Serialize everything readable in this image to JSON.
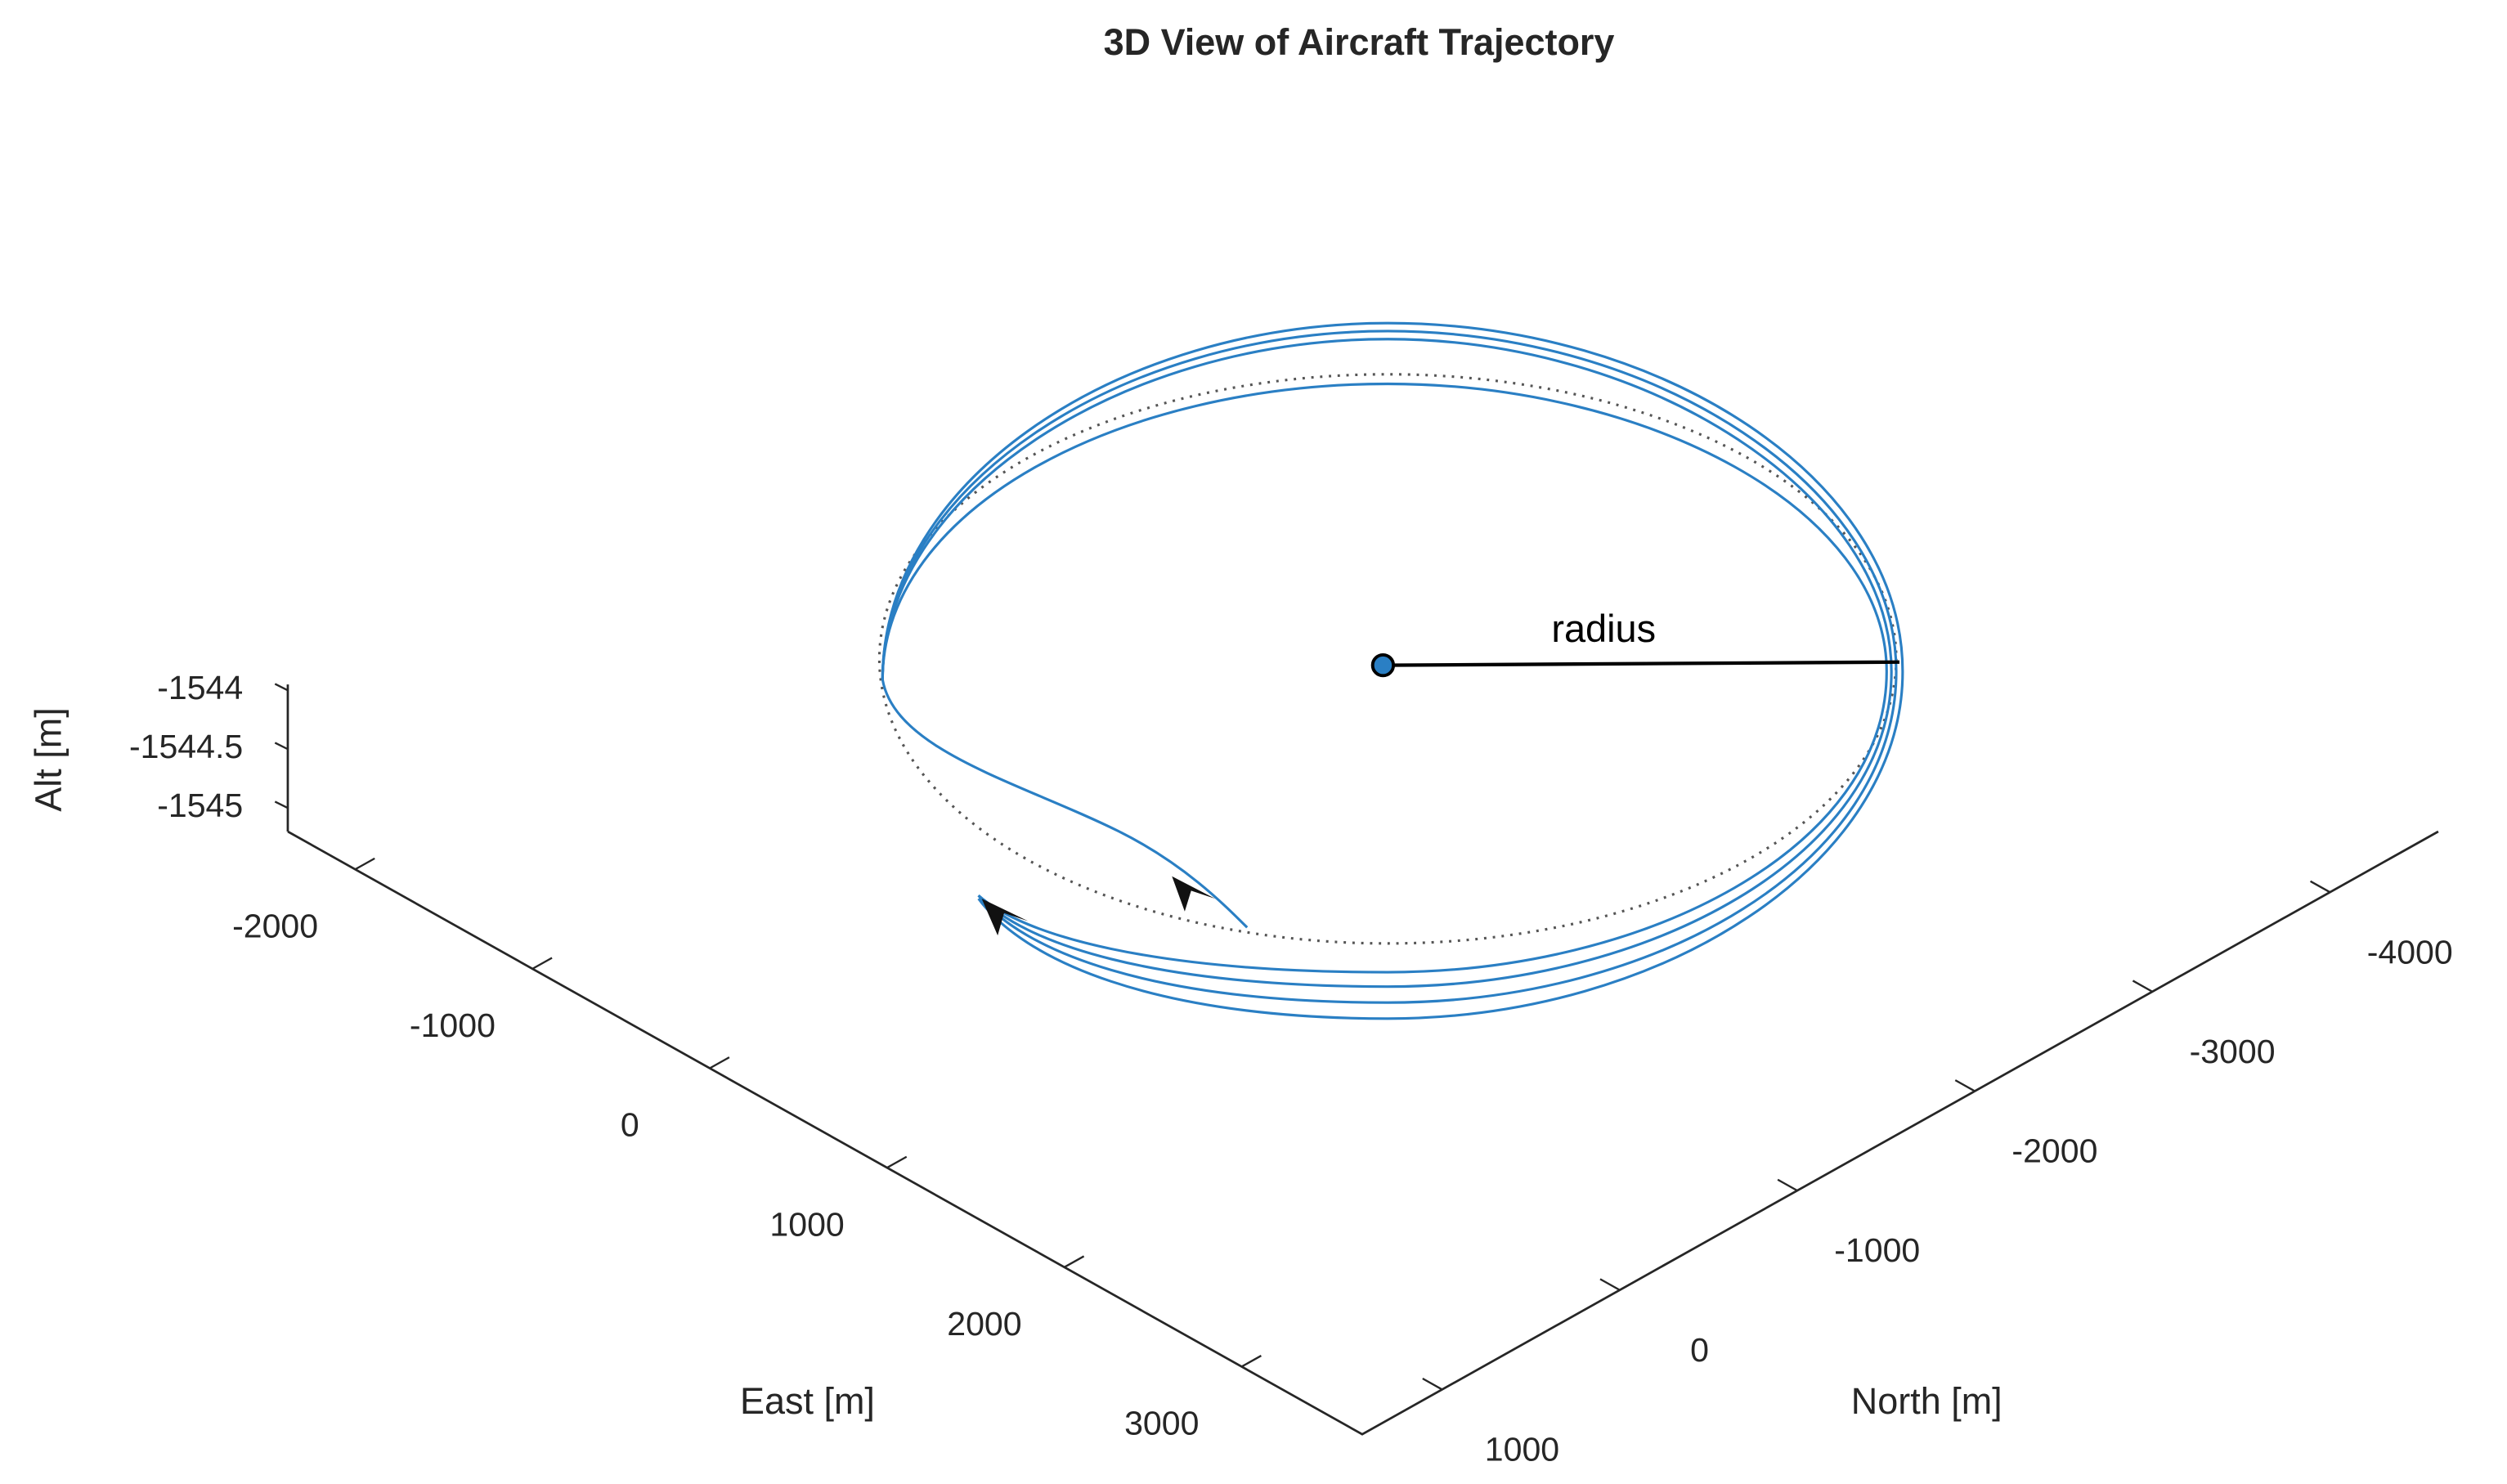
{
  "chart_data": {
    "type": "line3d",
    "title": "3D View of Aircraft Trajectory",
    "xlabel": "East [m]",
    "ylabel": "North [m]",
    "zlabel": "Alt [m]",
    "annotation": "radius",
    "xlim": [
      -2380,
      3680
    ],
    "xticks": [
      -2000,
      -1000,
      0,
      1000,
      2000,
      3000
    ],
    "ylim": [
      -4610,
      1450
    ],
    "yticks": [
      -4000,
      -3000,
      -2000,
      -1000,
      0,
      1000
    ],
    "zlim": [
      -1545.2,
      -1543.95
    ],
    "zticks": [
      -1544,
      -1544.5,
      -1545
    ]
  }
}
